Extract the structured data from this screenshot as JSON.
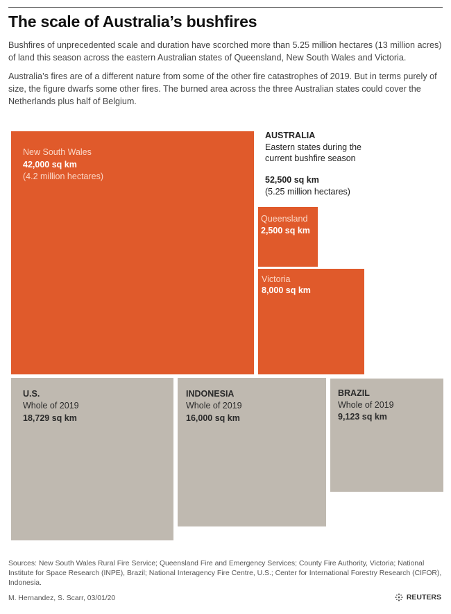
{
  "title": "The scale of Australia’s bushfires",
  "intro": [
    "Bushfires of unprecedented scale and duration have scorched more than 5.25 million hectares (13 million acres) of land this season across the eastern Australian states of Queensland, New South Wales and Victoria.",
    "Australia’s fires are of a different nature from some of the other fire catastrophes of 2019. But in terms purely of size, the figure dwarfs some other fires. The burned area across the three Australian states could cover the Netherlands plus half of Belgium."
  ],
  "australia": {
    "name": "AUSTRALIA",
    "desc1": "Eastern states during the",
    "desc2": "current bushfire season",
    "total": "52,500 sq km",
    "hectares": "(5.25 million hectares)"
  },
  "regions": {
    "nsw": {
      "name": "New South Wales",
      "area": "42,000 sq km",
      "note": "(4.2 million hectares)"
    },
    "qld": {
      "name": "Queensland",
      "area": "2,500 sq km"
    },
    "vic": {
      "name": "Victoria",
      "area": "8,000 sq km"
    },
    "us": {
      "name": "U.S.",
      "period": "Whole of 2019",
      "area": "18,729 sq km"
    },
    "indonesia": {
      "name": "INDONESIA",
      "period": "Whole of 2019",
      "area": "16,000 sq km"
    },
    "brazil": {
      "name": "BRAZIL",
      "period": "Whole of 2019",
      "area": "9,123 sq km"
    }
  },
  "chart_data": {
    "type": "area squares",
    "unit": "sq km",
    "series": [
      {
        "group": "Australia",
        "label": "New South Wales",
        "value": 42000
      },
      {
        "group": "Australia",
        "label": "Queensland",
        "value": 2500
      },
      {
        "group": "Australia",
        "label": "Victoria",
        "value": 8000
      },
      {
        "group": "Whole of 2019",
        "label": "U.S.",
        "value": 18729
      },
      {
        "group": "Whole of 2019",
        "label": "INDONESIA",
        "value": 16000
      },
      {
        "group": "Whole of 2019",
        "label": "BRAZIL",
        "value": 9123
      }
    ],
    "australia_total": 52500
  },
  "colors": {
    "australia": "#e05a2b",
    "other": "#bfb9b0"
  },
  "sources": "Sources: New South Wales Rural Fire Service; Queensland Fire and Emergency Services; County Fire Authority, Victoria; National Institute for Space Research (INPE), Brazil; National Interagency Fire Centre, U.S.; Center for International Forestry Research (CIFOR), Indonesia.",
  "credit": "M. Hernandez, S. Scarr, 03/01/20",
  "logo": "REUTERS"
}
